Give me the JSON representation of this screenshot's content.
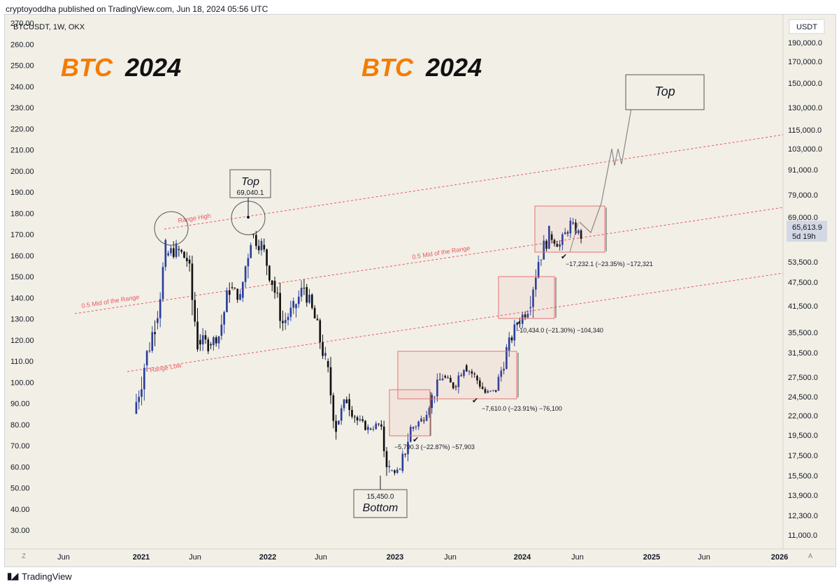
{
  "header": {
    "publisher": "cryptoyoddha published on TradingView.com, Jun 18, 2024 05:56 UTC"
  },
  "footer": {
    "brand": "TradingView"
  },
  "symbol": {
    "label": "BTCUSDT, 1W, OKX",
    "currency": "USDT"
  },
  "price": {
    "last": "65,613.9",
    "countdown": "5d 19h"
  },
  "axis": {
    "left_badge": "Z",
    "right_badge": "A"
  },
  "colors": {
    "accent_orange": "#f57c00",
    "bull": "#2a3f9a",
    "bear": "#111111",
    "range_line": "#e8575f",
    "box": "#e57373"
  },
  "chart_data": {
    "type": "candlestick",
    "title": "BTC 2024",
    "title_parts": {
      "orange": "BTC",
      "black": "2024"
    },
    "left_axis_ticks": [
      "270.00",
      "260.00",
      "250.00",
      "240.00",
      "230.00",
      "220.00",
      "210.00",
      "200.00",
      "190.00",
      "180.00",
      "170.00",
      "160.00",
      "150.00",
      "140.00",
      "130.00",
      "120.00",
      "110.00",
      "100.00",
      "90.00",
      "80.00",
      "70.00",
      "60.00",
      "50.00",
      "40.00",
      "30.00"
    ],
    "right_axis_ticks": [
      "190,000.0",
      "170,000.0",
      "150,000.0",
      "130,000.0",
      "115,000.0",
      "103,000.0",
      "91,000.0",
      "79,000.0",
      "69,000.0",
      "53,500.0",
      "47,500.0",
      "41,500.0",
      "35,500.0",
      "31,500.0",
      "27,500.0",
      "24,500.0",
      "22,000.0",
      "19,500.0",
      "17,500.0",
      "15,500.0",
      "13,900.0",
      "12,300.0",
      "11,000.0"
    ],
    "x_ticks": [
      "Jun",
      "2021",
      "Jun",
      "2022",
      "Jun",
      "2023",
      "Jun",
      "2024",
      "Jun",
      "2025",
      "Jun",
      "2026"
    ],
    "annotations": {
      "top_label": "Top",
      "top_value": "69,040.1",
      "bottom_label": "Bottom",
      "bottom_value": "15,450.0",
      "projection_label": "Top",
      "range_high": "Range High",
      "range_low": "Range Low",
      "mid_left": "0.5 Mid of the Range",
      "mid_right": "0.5 Mid of the Range",
      "drawdowns": [
        "−5,790.3 (−22.87%) −57,903",
        "−7,610.0 (−23.91%) −76,100",
        "−10,434.0 (−21.30%) −104,340",
        "−17,232.1 (−23.35%) −172,321"
      ]
    },
    "ohlc_weekly_approx": [
      {
        "period": "2020-Dec",
        "open": 85,
        "high": 123,
        "low": 85,
        "close": 108
      },
      {
        "period": "2021-Jan",
        "open": 108,
        "high": 138,
        "low": 105,
        "close": 128
      },
      {
        "period": "2021-Feb",
        "open": 128,
        "high": 168,
        "low": 125,
        "close": 160
      },
      {
        "period": "2021-Mar",
        "open": 160,
        "high": 170,
        "low": 150,
        "close": 163
      },
      {
        "period": "2021-Apr",
        "open": 163,
        "high": 173,
        "low": 150,
        "close": 158
      },
      {
        "period": "2021-May",
        "open": 158,
        "high": 160,
        "low": 112,
        "close": 120
      },
      {
        "period": "2021-Jun",
        "open": 120,
        "high": 128,
        "low": 108,
        "close": 118
      },
      {
        "period": "2021-Jul",
        "open": 118,
        "high": 125,
        "low": 110,
        "close": 122
      },
      {
        "period": "2021-Aug",
        "open": 122,
        "high": 150,
        "low": 120,
        "close": 145
      },
      {
        "period": "2021-Sep",
        "open": 145,
        "high": 150,
        "low": 135,
        "close": 140
      },
      {
        "period": "2021-Oct",
        "open": 140,
        "high": 178,
        "low": 138,
        "close": 170
      },
      {
        "period": "2021-Nov",
        "open": 170,
        "high": 182,
        "low": 160,
        "close": 165
      },
      {
        "period": "2021-Dec",
        "open": 165,
        "high": 168,
        "low": 140,
        "close": 148
      },
      {
        "period": "2022-Jan",
        "open": 148,
        "high": 150,
        "low": 120,
        "close": 128
      },
      {
        "period": "2022-Feb",
        "open": 128,
        "high": 140,
        "low": 120,
        "close": 135
      },
      {
        "period": "2022-Mar",
        "open": 135,
        "high": 150,
        "low": 125,
        "close": 145
      },
      {
        "period": "2022-Apr",
        "open": 145,
        "high": 148,
        "low": 125,
        "close": 130
      },
      {
        "period": "2022-May",
        "open": 130,
        "high": 132,
        "low": 105,
        "close": 110
      },
      {
        "period": "2022-Jun",
        "open": 110,
        "high": 112,
        "low": 72,
        "close": 80
      },
      {
        "period": "2022-Jul",
        "open": 80,
        "high": 95,
        "low": 75,
        "close": 92
      },
      {
        "period": "2022-Aug",
        "open": 92,
        "high": 98,
        "low": 78,
        "close": 82
      },
      {
        "period": "2022-Sep",
        "open": 82,
        "high": 85,
        "low": 74,
        "close": 78
      },
      {
        "period": "2022-Oct",
        "open": 78,
        "high": 84,
        "low": 75,
        "close": 80
      },
      {
        "period": "2022-Nov",
        "open": 80,
        "high": 82,
        "low": 54,
        "close": 58
      },
      {
        "period": "2022-Dec",
        "open": 58,
        "high": 62,
        "low": 55,
        "close": 58
      },
      {
        "period": "2023-Jan",
        "open": 58,
        "high": 80,
        "low": 57,
        "close": 78
      },
      {
        "period": "2023-Feb",
        "open": 78,
        "high": 90,
        "low": 75,
        "close": 82
      },
      {
        "period": "2023-Mar",
        "open": 82,
        "high": 95,
        "low": 78,
        "close": 93
      },
      {
        "period": "2023-Apr",
        "open": 93,
        "high": 107,
        "low": 88,
        "close": 103
      },
      {
        "period": "2023-May",
        "open": 103,
        "high": 105,
        "low": 95,
        "close": 98
      },
      {
        "period": "2023-Jun",
        "open": 98,
        "high": 110,
        "low": 92,
        "close": 108
      },
      {
        "period": "2023-Jul",
        "open": 108,
        "high": 112,
        "low": 100,
        "close": 103
      },
      {
        "period": "2023-Aug",
        "open": 103,
        "high": 105,
        "low": 92,
        "close": 95
      },
      {
        "period": "2023-Sep",
        "open": 95,
        "high": 98,
        "low": 92,
        "close": 96
      },
      {
        "period": "2023-Oct",
        "open": 96,
        "high": 118,
        "low": 95,
        "close": 115
      },
      {
        "period": "2023-Nov",
        "open": 115,
        "high": 130,
        "low": 112,
        "close": 128
      },
      {
        "period": "2024-Jan",
        "open": 128,
        "high": 140,
        "low": 122,
        "close": 135
      },
      {
        "period": "2024-Feb",
        "open": 135,
        "high": 160,
        "low": 130,
        "close": 158
      },
      {
        "period": "2024-Mar",
        "open": 158,
        "high": 178,
        "low": 155,
        "close": 170
      },
      {
        "period": "2024-Apr",
        "open": 170,
        "high": 175,
        "low": 160,
        "close": 165
      },
      {
        "period": "2024-May",
        "open": 165,
        "high": 178,
        "low": 162,
        "close": 175
      },
      {
        "period": "2024-Jun",
        "open": 175,
        "high": 178,
        "low": 165,
        "close": 169
      }
    ],
    "grid": false
  }
}
